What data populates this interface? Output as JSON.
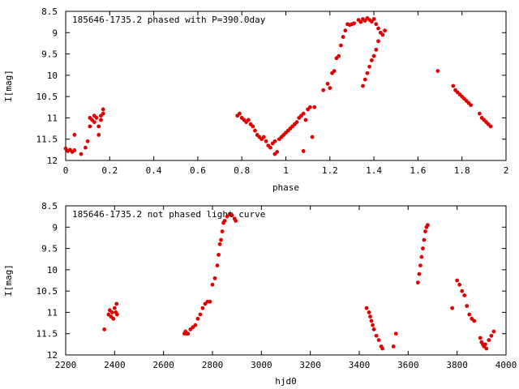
{
  "chart_data": [
    {
      "type": "scatter",
      "title": "185646-1735.2 phased with P=390.0day",
      "xlabel": "phase",
      "ylabel": "I[mag]",
      "xlim": [
        0,
        2
      ],
      "ylim": [
        12,
        8.5
      ],
      "y_inverted": true,
      "x_ticks": [
        "0",
        "0.2",
        "0.4",
        "0.6",
        "0.8",
        "1",
        "1.2",
        "1.4",
        "1.6",
        "1.8",
        "2"
      ],
      "y_ticks": [
        "8.5",
        "9",
        "9.5",
        "10",
        "10.5",
        "11",
        "11.5",
        "12"
      ],
      "marker_color": "#e00000",
      "series": [
        {
          "points": [
            [
              0.0,
              11.72
            ],
            [
              0.01,
              11.78
            ],
            [
              0.02,
              11.75
            ],
            [
              0.03,
              11.8
            ],
            [
              0.04,
              11.76
            ],
            [
              0.04,
              11.4
            ],
            [
              0.07,
              11.85
            ],
            [
              0.09,
              11.7
            ],
            [
              0.1,
              11.55
            ],
            [
              0.11,
              11.2
            ],
            [
              0.11,
              11.0
            ],
            [
              0.12,
              11.05
            ],
            [
              0.13,
              10.95
            ],
            [
              0.13,
              11.1
            ],
            [
              0.14,
              11.0
            ],
            [
              0.15,
              11.2
            ],
            [
              0.15,
              11.4
            ],
            [
              0.16,
              11.05
            ],
            [
              0.16,
              10.95
            ],
            [
              0.17,
              10.9
            ],
            [
              0.17,
              10.8
            ],
            [
              0.78,
              10.95
            ],
            [
              0.79,
              10.9
            ],
            [
              0.8,
              11.0
            ],
            [
              0.81,
              11.05
            ],
            [
              0.82,
              11.1
            ],
            [
              0.83,
              11.05
            ],
            [
              0.84,
              11.15
            ],
            [
              0.85,
              11.2
            ],
            [
              0.86,
              11.3
            ],
            [
              0.87,
              11.4
            ],
            [
              0.88,
              11.45
            ],
            [
              0.89,
              11.5
            ],
            [
              0.9,
              11.45
            ],
            [
              0.91,
              11.55
            ],
            [
              0.92,
              11.65
            ],
            [
              0.93,
              11.7
            ],
            [
              0.94,
              11.6
            ],
            [
              0.95,
              11.55
            ],
            [
              0.95,
              11.85
            ],
            [
              0.96,
              11.8
            ],
            [
              0.97,
              11.5
            ],
            [
              0.98,
              11.45
            ],
            [
              0.99,
              11.4
            ],
            [
              1.0,
              11.35
            ],
            [
              1.01,
              11.3
            ],
            [
              1.02,
              11.25
            ],
            [
              1.03,
              11.2
            ],
            [
              1.04,
              11.15
            ],
            [
              1.05,
              11.1
            ],
            [
              1.06,
              11.0
            ],
            [
              1.07,
              10.95
            ],
            [
              1.08,
              10.9
            ],
            [
              1.09,
              11.05
            ],
            [
              1.1,
              10.8
            ],
            [
              1.11,
              10.75
            ],
            [
              1.12,
              11.45
            ],
            [
              1.13,
              10.75
            ],
            [
              1.08,
              11.78
            ],
            [
              1.17,
              10.35
            ],
            [
              1.19,
              10.2
            ],
            [
              1.2,
              10.3
            ],
            [
              1.21,
              9.95
            ],
            [
              1.22,
              9.9
            ],
            [
              1.23,
              9.6
            ],
            [
              1.24,
              9.55
            ],
            [
              1.25,
              9.3
            ],
            [
              1.26,
              9.1
            ],
            [
              1.27,
              8.95
            ],
            [
              1.28,
              8.8
            ],
            [
              1.29,
              8.82
            ],
            [
              1.3,
              8.8
            ],
            [
              1.31,
              8.78
            ],
            [
              1.33,
              8.7
            ],
            [
              1.34,
              8.75
            ],
            [
              1.35,
              8.68
            ],
            [
              1.36,
              8.72
            ],
            [
              1.37,
              8.66
            ],
            [
              1.38,
              8.7
            ],
            [
              1.39,
              8.74
            ],
            [
              1.4,
              8.68
            ],
            [
              1.41,
              8.8
            ],
            [
              1.42,
              8.9
            ],
            [
              1.43,
              9.0
            ],
            [
              1.44,
              9.05
            ],
            [
              1.45,
              8.95
            ],
            [
              1.42,
              9.2
            ],
            [
              1.41,
              9.4
            ],
            [
              1.4,
              9.55
            ],
            [
              1.39,
              9.65
            ],
            [
              1.38,
              9.8
            ],
            [
              1.37,
              9.95
            ],
            [
              1.36,
              10.1
            ],
            [
              1.35,
              10.25
            ],
            [
              1.69,
              9.9
            ],
            [
              1.76,
              10.25
            ],
            [
              1.77,
              10.35
            ],
            [
              1.78,
              10.4
            ],
            [
              1.79,
              10.45
            ],
            [
              1.8,
              10.5
            ],
            [
              1.81,
              10.55
            ],
            [
              1.82,
              10.6
            ],
            [
              1.83,
              10.65
            ],
            [
              1.84,
              10.7
            ],
            [
              1.88,
              10.9
            ],
            [
              1.89,
              11.0
            ],
            [
              1.9,
              11.05
            ],
            [
              1.91,
              11.1
            ],
            [
              1.92,
              11.15
            ],
            [
              1.93,
              11.2
            ]
          ]
        }
      ]
    },
    {
      "type": "scatter",
      "title": "185646-1735.2 not phased light curve",
      "xlabel": "hjd0",
      "ylabel": "I[mag]",
      "xlim": [
        2200,
        4000
      ],
      "ylim": [
        12,
        8.5
      ],
      "y_inverted": true,
      "x_ticks": [
        "2200",
        "2400",
        "2600",
        "2800",
        "3000",
        "3200",
        "3400",
        "3600",
        "3800",
        "4000"
      ],
      "y_ticks": [
        "8.5",
        "9",
        "9.5",
        "10",
        "10.5",
        "11",
        "11.5",
        "12"
      ],
      "marker_color": "#e00000",
      "series": [
        {
          "points": [
            [
              2358,
              11.4
            ],
            [
              2375,
              11.05
            ],
            [
              2380,
              10.95
            ],
            [
              2385,
              11.1
            ],
            [
              2390,
              11.0
            ],
            [
              2395,
              11.15
            ],
            [
              2400,
              10.9
            ],
            [
              2405,
              11.0
            ],
            [
              2408,
              10.8
            ],
            [
              2410,
              11.05
            ],
            [
              2685,
              11.5
            ],
            [
              2690,
              11.45
            ],
            [
              2695,
              11.5
            ],
            [
              2700,
              11.5
            ],
            [
              2710,
              11.4
            ],
            [
              2720,
              11.35
            ],
            [
              2730,
              11.3
            ],
            [
              2740,
              11.15
            ],
            [
              2750,
              11.05
            ],
            [
              2760,
              10.9
            ],
            [
              2770,
              10.8
            ],
            [
              2780,
              10.75
            ],
            [
              2790,
              10.75
            ],
            [
              2800,
              10.35
            ],
            [
              2810,
              10.2
            ],
            [
              2820,
              9.9
            ],
            [
              2825,
              9.65
            ],
            [
              2830,
              9.4
            ],
            [
              2835,
              9.3
            ],
            [
              2840,
              9.1
            ],
            [
              2845,
              8.9
            ],
            [
              2850,
              8.85
            ],
            [
              2860,
              8.75
            ],
            [
              2870,
              8.7
            ],
            [
              2880,
              8.72
            ],
            [
              2890,
              8.8
            ],
            [
              2895,
              8.85
            ],
            [
              3430,
              10.9
            ],
            [
              3440,
              11.0
            ],
            [
              3445,
              11.1
            ],
            [
              3450,
              11.2
            ],
            [
              3455,
              11.3
            ],
            [
              3460,
              11.4
            ],
            [
              3470,
              11.55
            ],
            [
              3480,
              11.65
            ],
            [
              3490,
              11.8
            ],
            [
              3495,
              11.85
            ],
            [
              3540,
              11.8
            ],
            [
              3550,
              11.5
            ],
            [
              3640,
              10.3
            ],
            [
              3645,
              10.1
            ],
            [
              3650,
              9.9
            ],
            [
              3655,
              9.7
            ],
            [
              3660,
              9.5
            ],
            [
              3665,
              9.3
            ],
            [
              3670,
              9.1
            ],
            [
              3675,
              9.0
            ],
            [
              3680,
              8.95
            ],
            [
              3780,
              10.9
            ],
            [
              3800,
              10.25
            ],
            [
              3810,
              10.35
            ],
            [
              3820,
              10.5
            ],
            [
              3830,
              10.6
            ],
            [
              3840,
              10.85
            ],
            [
              3850,
              11.05
            ],
            [
              3860,
              11.15
            ],
            [
              3870,
              11.2
            ],
            [
              3895,
              11.6
            ],
            [
              3900,
              11.7
            ],
            [
              3905,
              11.75
            ],
            [
              3910,
              11.8
            ],
            [
              3915,
              11.75
            ],
            [
              3920,
              11.85
            ],
            [
              3930,
              11.65
            ],
            [
              3940,
              11.55
            ],
            [
              3950,
              11.45
            ]
          ]
        }
      ]
    }
  ]
}
